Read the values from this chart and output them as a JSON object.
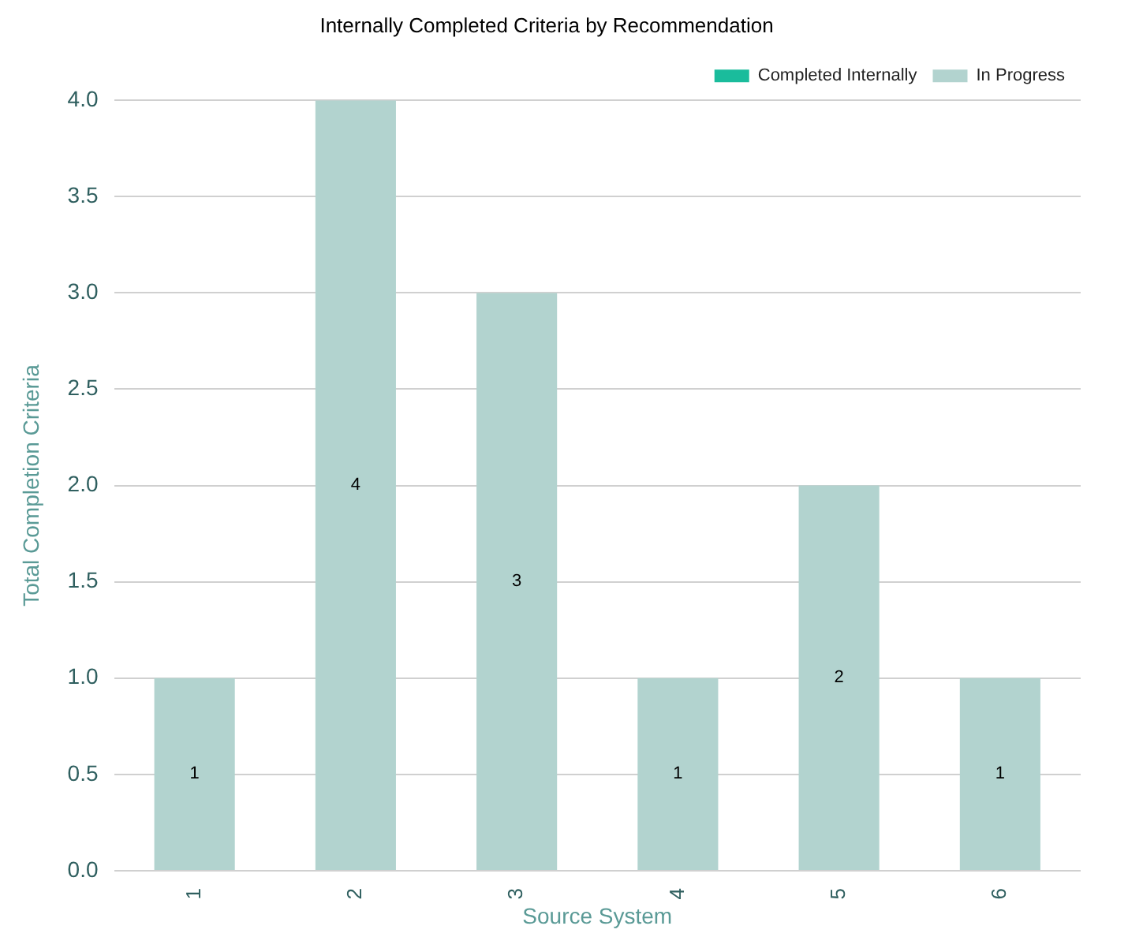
{
  "chart_data": {
    "type": "bar",
    "title": "Internally Completed Criteria by Recommendation",
    "xlabel": "Source System",
    "ylabel": "Total Completion Criteria",
    "categories": [
      "1",
      "2",
      "3",
      "4",
      "5",
      "6"
    ],
    "series": [
      {
        "name": "Completed Internally",
        "color": "#1abc9c",
        "values": [
          0,
          0,
          0,
          0,
          0,
          0
        ]
      },
      {
        "name": "In Progress",
        "color": "#b2d3cf",
        "values": [
          1,
          4,
          3,
          1,
          2,
          1
        ],
        "value_labels": [
          "1",
          "4",
          "3",
          "1",
          "2",
          "1"
        ]
      }
    ],
    "stacked": true,
    "ylim": [
      0,
      4
    ],
    "yticks": [
      {
        "value": 0,
        "label": "0.0"
      },
      {
        "value": 0.5,
        "label": "0.5"
      },
      {
        "value": 1,
        "label": "1.0"
      },
      {
        "value": 1.5,
        "label": "1.5"
      },
      {
        "value": 2,
        "label": "2.0"
      },
      {
        "value": 2.5,
        "label": "2.5"
      },
      {
        "value": 3,
        "label": "3.0"
      },
      {
        "value": 3.5,
        "label": "3.5"
      },
      {
        "value": 4,
        "label": "4.0"
      }
    ],
    "grid": "y",
    "legend": "top right"
  }
}
